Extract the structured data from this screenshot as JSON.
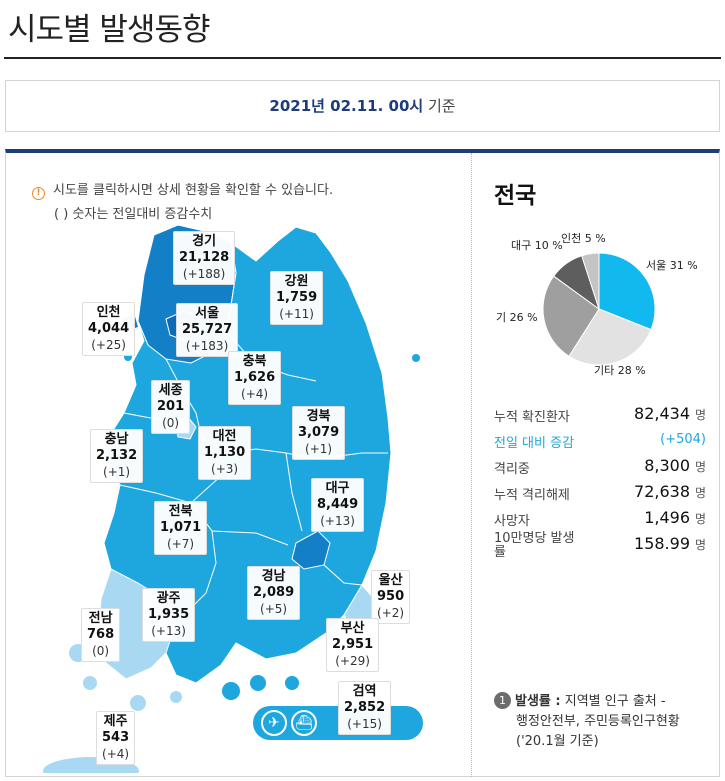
{
  "page": {
    "title": "시도별 발생동향",
    "date_bold": "2021년 02.11. 00시",
    "date_suffix": "기준"
  },
  "notice": {
    "line1": "시도를 클릭하시면 상세 현황을 확인할 수 있습니다.",
    "line2": "( ) 숫자는 전일대비 증감수치"
  },
  "regions": [
    {
      "name": "경기",
      "count": "21,128",
      "diff": "(+188)"
    },
    {
      "name": "강원",
      "count": "1,759",
      "diff": "(+11)"
    },
    {
      "name": "인천",
      "count": "4,044",
      "diff": "(+25)"
    },
    {
      "name": "서울",
      "count": "25,727",
      "diff": "(+183)"
    },
    {
      "name": "충북",
      "count": "1,626",
      "diff": "(+4)"
    },
    {
      "name": "세종",
      "count": "201",
      "diff": "(0)"
    },
    {
      "name": "충남",
      "count": "2,132",
      "diff": "(+1)"
    },
    {
      "name": "대전",
      "count": "1,130",
      "diff": "(+3)"
    },
    {
      "name": "경북",
      "count": "3,079",
      "diff": "(+1)"
    },
    {
      "name": "대구",
      "count": "8,449",
      "diff": "(+13)"
    },
    {
      "name": "전북",
      "count": "1,071",
      "diff": "(+7)"
    },
    {
      "name": "울산",
      "count": "950",
      "diff": "(+2)"
    },
    {
      "name": "경남",
      "count": "2,089",
      "diff": "(+5)"
    },
    {
      "name": "광주",
      "count": "1,935",
      "diff": "(+13)"
    },
    {
      "name": "전남",
      "count": "768",
      "diff": "(0)"
    },
    {
      "name": "부산",
      "count": "2,951",
      "diff": "(+29)"
    },
    {
      "name": "검역",
      "count": "2,852",
      "diff": "(+15)"
    },
    {
      "name": "제주",
      "count": "543",
      "diff": "(+4)"
    }
  ],
  "airport": {
    "plane_icon": "plane-icon",
    "ship_icon": "ship-icon"
  },
  "national": {
    "title": "전국",
    "chart_data": {
      "type": "pie",
      "labels": [
        "서울 31 %",
        "기타 28 %",
        "기 26 %",
        "대구 10 %",
        "인천 5 %"
      ],
      "categories": [
        "서울",
        "기타",
        "기",
        "대구",
        "인천"
      ],
      "values": [
        31,
        28,
        26,
        10,
        5
      ],
      "colors": [
        "#12b9ef",
        "#e2e2e2",
        "#9f9f9f",
        "#5e5e5e",
        "#c4c4c4"
      ]
    },
    "stats": [
      {
        "label": "누적 확진환자",
        "value": "82,434",
        "unit": "명"
      },
      {
        "label": "전일 대비 증감",
        "value": "(+504)",
        "unit": ""
      },
      {
        "label": "격리중",
        "value": "8,300",
        "unit": "명"
      },
      {
        "label": "누적 격리해제",
        "value": "72,638",
        "unit": "명"
      },
      {
        "label": "사망자",
        "value": "1,496",
        "unit": "명"
      },
      {
        "label": "10만명당 발생률",
        "value": "158.99",
        "unit": "명"
      }
    ]
  },
  "footnote": {
    "number": "1",
    "term": "발생률 :",
    "text": "지역별 인구 출처 -",
    "line2": "행정안전부, 주민등록인구현황",
    "line3": "('20.1월 기준)"
  },
  "colors": {
    "navy": "#1d3c78",
    "map_blue": "#1ea7de",
    "map_dark": "#137fc7",
    "map_light": "#a9d9f2",
    "highlight": "#1ea7de"
  }
}
